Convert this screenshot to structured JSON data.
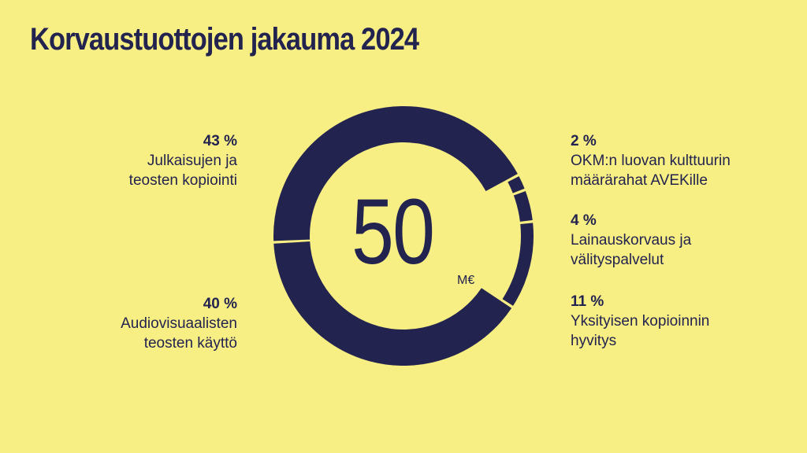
{
  "title": "Korvaustuottojen jakauma 2024",
  "center": {
    "value": "50",
    "unit": "M€"
  },
  "colors": {
    "background": "#F7EE84",
    "ink": "#23234F"
  },
  "chart_data": {
    "type": "pie",
    "title": "Korvaustuottojen jakauma 2024",
    "total_label": "50 M€",
    "slices": [
      {
        "pct_label": "43 %",
        "value": 43,
        "label": "Julkaisujen ja\nteosten kopiointi"
      },
      {
        "pct_label": "40 %",
        "value": 40,
        "label": "Audiovisuaalisten\nteosten käyttö"
      },
      {
        "pct_label": "2 %",
        "value": 2,
        "label": "OKM:n luovan kulttuurin\nmäärärahat AVEKille"
      },
      {
        "pct_label": "4 %",
        "value": 4,
        "label": "Lainauskorvaus ja\nvälityspalvelut"
      },
      {
        "pct_label": "11 %",
        "value": 11,
        "label": "Yksityisen kopioinnin\nhyvitys"
      }
    ],
    "clockwise_order": [
      2,
      3,
      4,
      1,
      0
    ]
  }
}
